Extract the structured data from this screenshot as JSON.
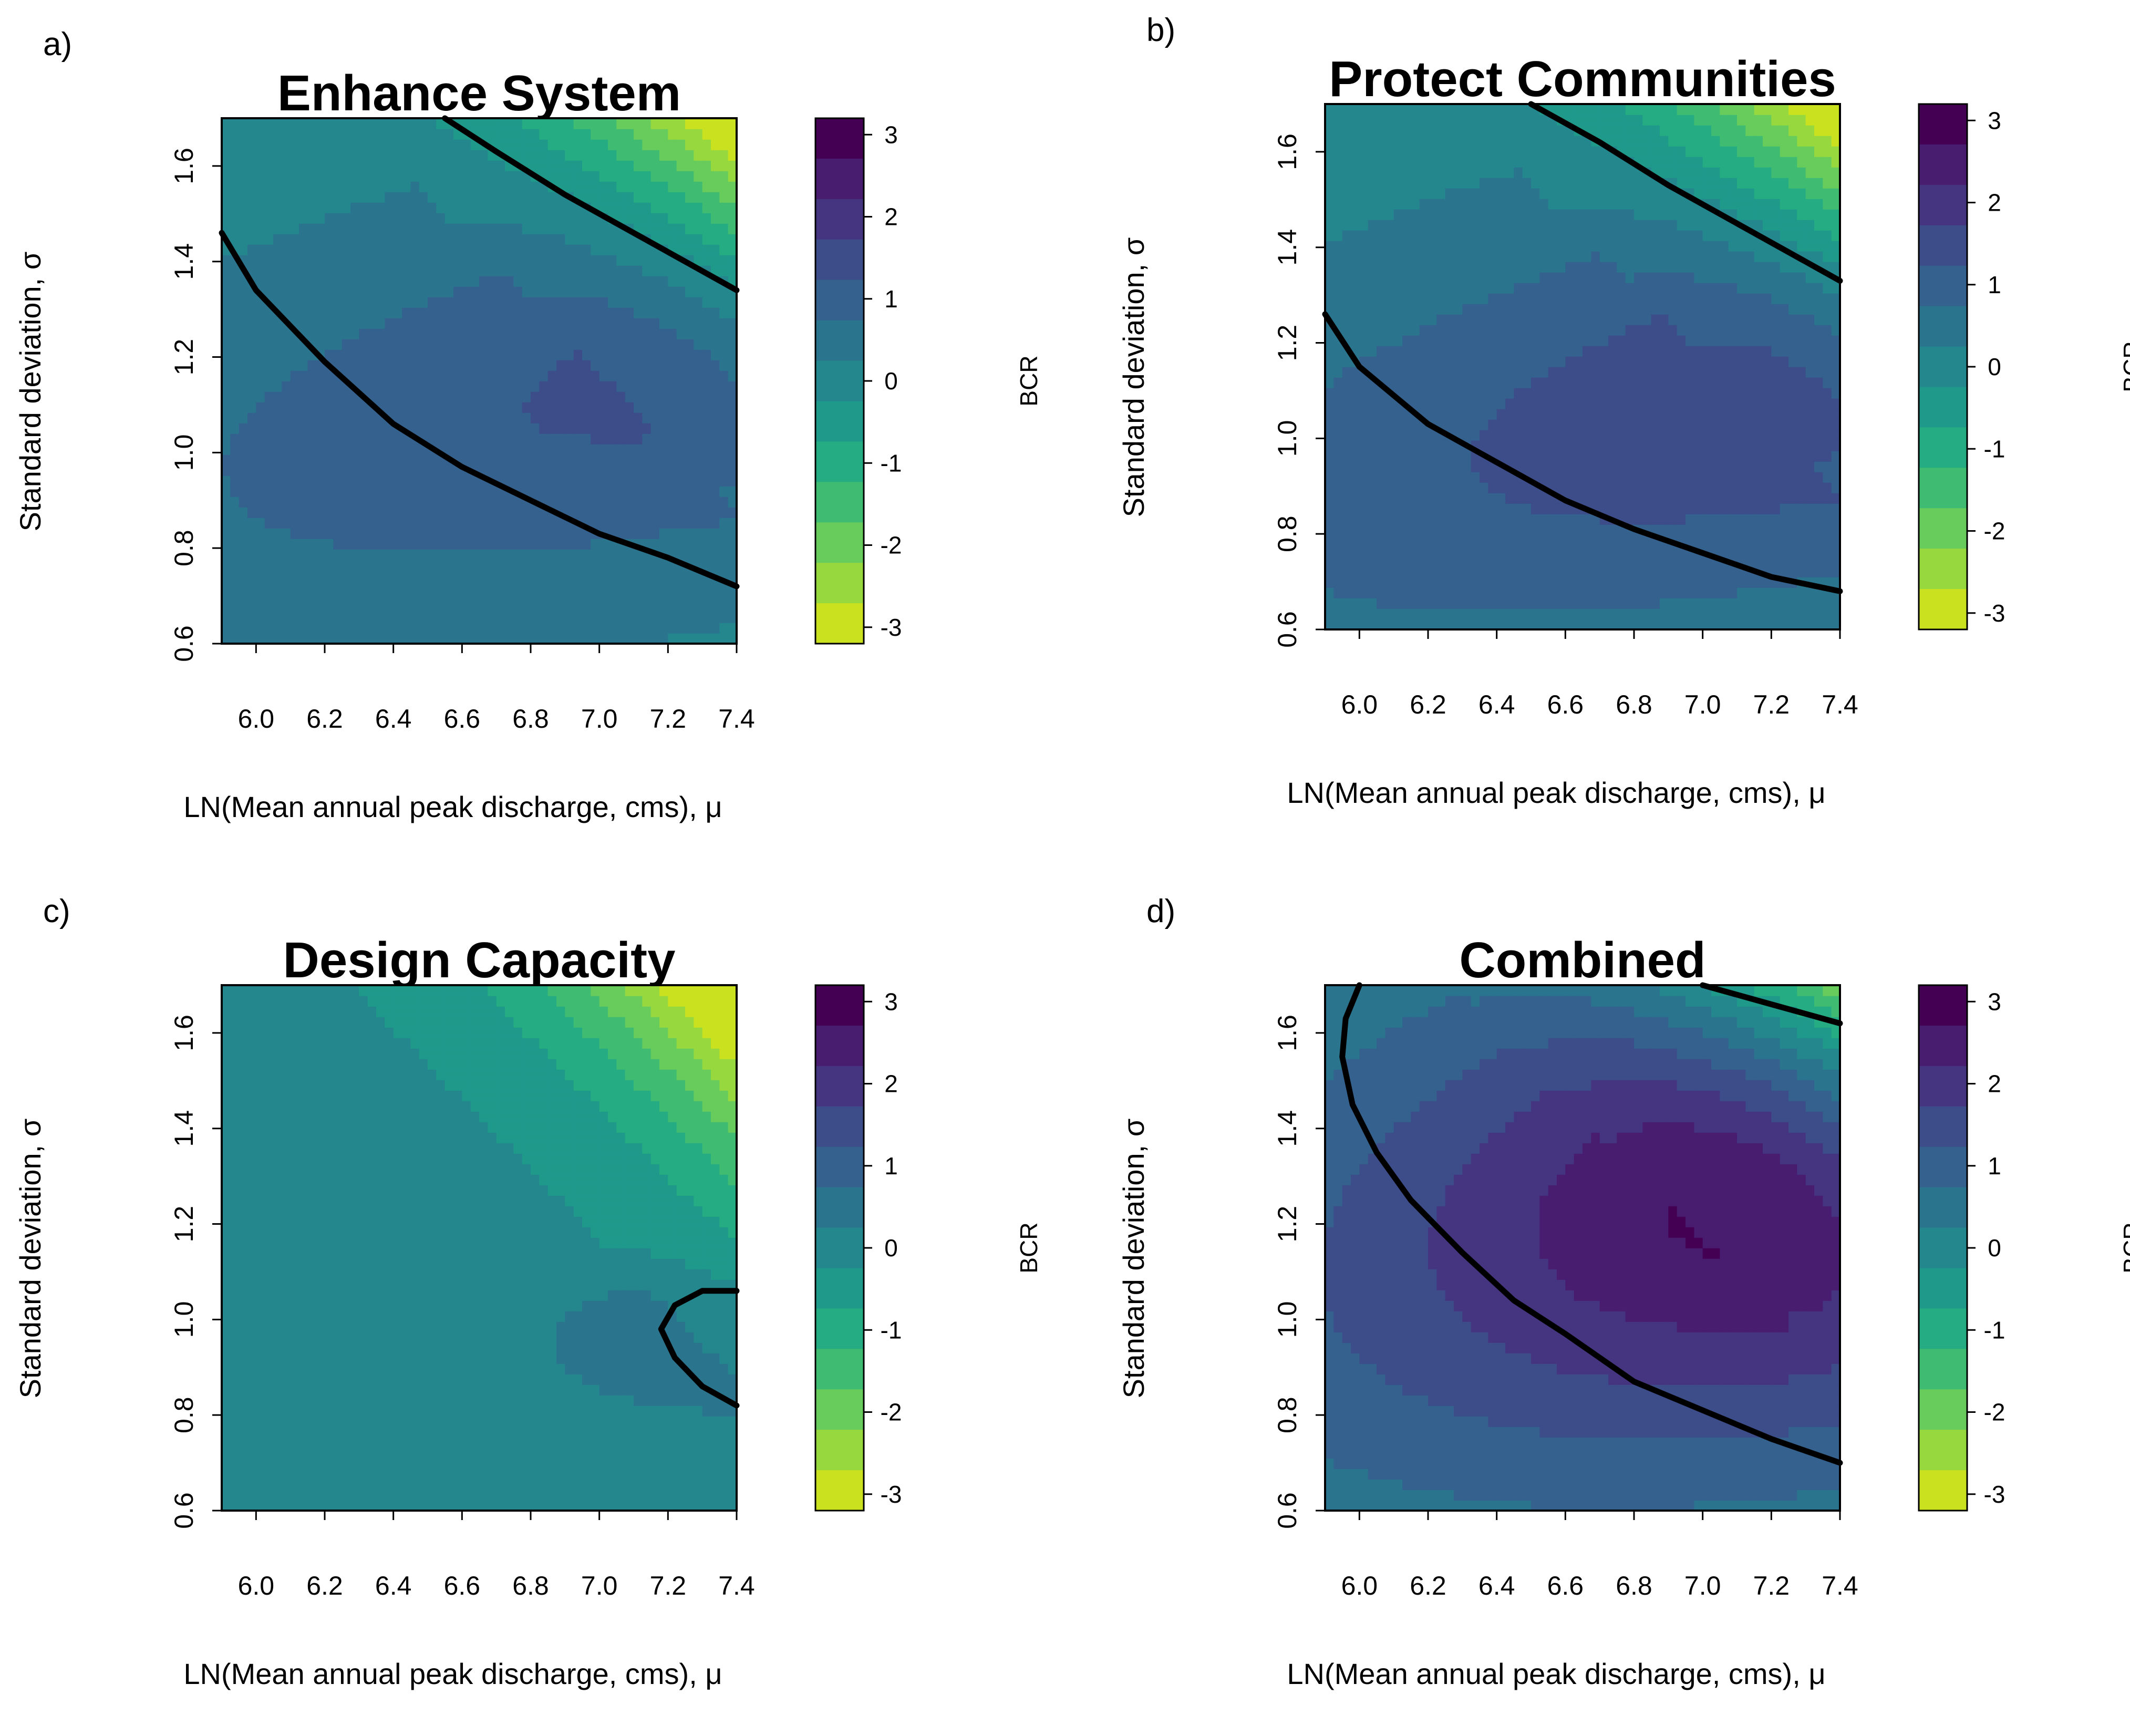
{
  "figure": {
    "x_axis_label": "LN(Mean annual peak discharge, cms), μ",
    "y_axis_label": "Standard deviation, σ",
    "colorbar_title": "BCR"
  },
  "chart_data": [
    {
      "type": "heatmap",
      "panel": "a)",
      "title": "Enhance System",
      "xlim": [
        5.9,
        7.4
      ],
      "ylim": [
        0.6,
        1.7
      ],
      "xticks": [
        "6.0",
        "6.2",
        "6.4",
        "6.6",
        "6.8",
        "7.0",
        "7.2",
        "7.4"
      ],
      "yticks": [
        "0.6",
        "0.8",
        "1.0",
        "1.2",
        "1.4",
        "1.6"
      ],
      "colorbar": {
        "range": [
          -3.2,
          3.2
        ],
        "ticks": [
          "3",
          "2",
          "1",
          "0",
          "-1",
          "-2",
          "-3"
        ]
      },
      "surface": {
        "center_x": 7.35,
        "center_y": 1.18,
        "peak": 1.35,
        "spread_x": 1.55,
        "spread_y": 0.42,
        "corr": -0.55,
        "high_corner_drop": 1.0
      },
      "contours": [
        {
          "level": 0,
          "points": [
            [
              5.9,
              1.46
            ],
            [
              6.0,
              1.34
            ],
            [
              6.2,
              1.19
            ],
            [
              6.4,
              1.06
            ],
            [
              6.6,
              0.97
            ],
            [
              6.8,
              0.9
            ],
            [
              7.0,
              0.83
            ],
            [
              7.2,
              0.78
            ],
            [
              7.4,
              0.72
            ]
          ]
        },
        {
          "level": 0,
          "points": [
            [
              6.55,
              1.7
            ],
            [
              6.7,
              1.63
            ],
            [
              6.9,
              1.54
            ],
            [
              7.1,
              1.46
            ],
            [
              7.3,
              1.38
            ],
            [
              7.4,
              1.34
            ]
          ]
        }
      ]
    },
    {
      "type": "heatmap",
      "panel": "b)",
      "title": "Protect Communities",
      "xlim": [
        5.9,
        7.4
      ],
      "ylim": [
        0.6,
        1.7
      ],
      "xticks": [
        "6.0",
        "6.2",
        "6.4",
        "6.6",
        "6.8",
        "7.0",
        "7.2",
        "7.4"
      ],
      "yticks": [
        "0.6",
        "0.8",
        "1.0",
        "1.2",
        "1.4",
        "1.6"
      ],
      "colorbar": {
        "range": [
          -3.2,
          3.2
        ],
        "ticks": [
          "3",
          "2",
          "1",
          "0",
          "-1",
          "-2",
          "-3"
        ]
      },
      "surface": {
        "center_x": 7.4,
        "center_y": 1.12,
        "peak": 1.65,
        "spread_x": 1.65,
        "spread_y": 0.45,
        "corr": -0.55,
        "high_corner_drop": 1.0
      },
      "contours": [
        {
          "level": 0,
          "points": [
            [
              5.9,
              1.26
            ],
            [
              6.0,
              1.15
            ],
            [
              6.2,
              1.03
            ],
            [
              6.4,
              0.95
            ],
            [
              6.6,
              0.87
            ],
            [
              6.8,
              0.81
            ],
            [
              7.0,
              0.76
            ],
            [
              7.2,
              0.71
            ],
            [
              7.4,
              0.68
            ]
          ]
        },
        {
          "level": 0,
          "points": [
            [
              6.5,
              1.7
            ],
            [
              6.7,
              1.62
            ],
            [
              6.9,
              1.53
            ],
            [
              7.1,
              1.45
            ],
            [
              7.3,
              1.37
            ],
            [
              7.4,
              1.33
            ]
          ]
        }
      ]
    },
    {
      "type": "heatmap",
      "panel": "c)",
      "title": "Design Capacity",
      "xlim": [
        5.9,
        7.4
      ],
      "ylim": [
        0.6,
        1.7
      ],
      "xticks": [
        "6.0",
        "6.2",
        "6.4",
        "6.6",
        "6.8",
        "7.0",
        "7.2",
        "7.4"
      ],
      "yticks": [
        "0.6",
        "0.8",
        "1.0",
        "1.2",
        "1.4",
        "1.6"
      ],
      "colorbar": {
        "range": [
          -3.2,
          3.2
        ],
        "ticks": [
          "3",
          "2",
          "1",
          "0",
          "-1",
          "-2",
          "-3"
        ]
      },
      "surface": {
        "center_x": 7.4,
        "center_y": 0.95,
        "peak": 0.55,
        "spread_x": 0.6,
        "spread_y": 0.16,
        "corr": 0,
        "high_corner_drop": 1.6
      },
      "contours": [
        {
          "level": 0,
          "points": [
            [
              7.4,
              1.06
            ],
            [
              7.3,
              1.06
            ],
            [
              7.22,
              1.03
            ],
            [
              7.18,
              0.98
            ],
            [
              7.22,
              0.92
            ],
            [
              7.3,
              0.86
            ],
            [
              7.4,
              0.82
            ]
          ]
        }
      ]
    },
    {
      "type": "heatmap",
      "panel": "d)",
      "title": "Combined",
      "xlim": [
        5.9,
        7.4
      ],
      "ylim": [
        0.6,
        1.7
      ],
      "xticks": [
        "6.0",
        "6.2",
        "6.4",
        "6.6",
        "6.8",
        "7.0",
        "7.2",
        "7.4"
      ],
      "yticks": [
        "0.6",
        "0.8",
        "1.0",
        "1.2",
        "1.4",
        "1.6"
      ],
      "colorbar": {
        "range": [
          -3.2,
          3.2
        ],
        "ticks": [
          "3",
          "2",
          "1",
          "0",
          "-1",
          "-2",
          "-3"
        ]
      },
      "surface": {
        "center_x": 7.4,
        "center_y": 1.3,
        "peak": 3.0,
        "spread_x": 1.5,
        "spread_y": 0.55,
        "corr": -0.35,
        "high_corner_drop": 0.5
      },
      "contours": [
        {
          "level": 0,
          "points": [
            [
              6.0,
              1.7
            ],
            [
              5.96,
              1.63
            ],
            [
              5.95,
              1.55
            ],
            [
              5.98,
              1.45
            ],
            [
              6.05,
              1.35
            ],
            [
              6.15,
              1.25
            ],
            [
              6.3,
              1.14
            ],
            [
              6.45,
              1.04
            ],
            [
              6.6,
              0.97
            ],
            [
              6.8,
              0.87
            ],
            [
              7.0,
              0.81
            ],
            [
              7.2,
              0.75
            ],
            [
              7.4,
              0.7
            ]
          ]
        },
        {
          "level": 0,
          "points": [
            [
              7.0,
              1.7
            ],
            [
              7.2,
              1.66
            ],
            [
              7.4,
              1.62
            ]
          ]
        }
      ]
    }
  ]
}
